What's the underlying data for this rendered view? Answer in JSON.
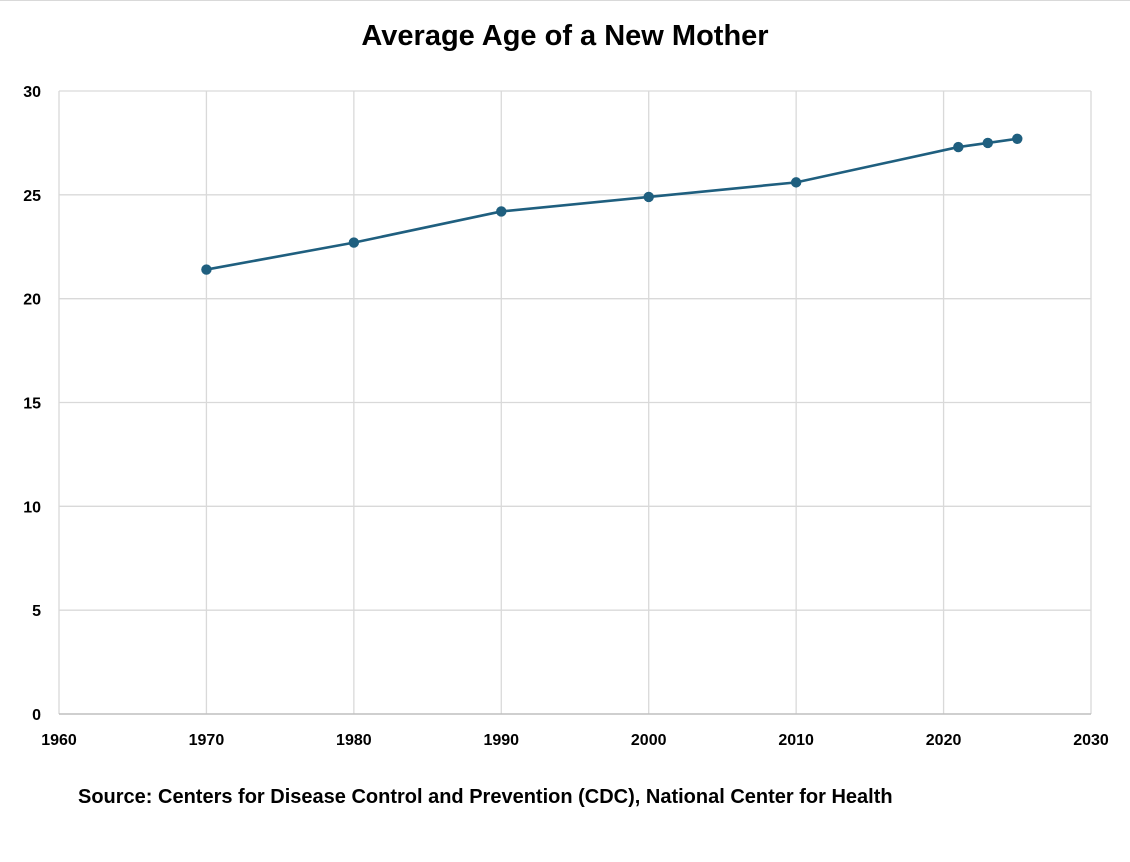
{
  "chart_data": {
    "type": "line",
    "title": "Average Age of a New Mother",
    "xlabel": "",
    "ylabel": "",
    "xlim": [
      1960,
      2030
    ],
    "ylim": [
      0,
      30
    ],
    "x_ticks": [
      1960,
      1970,
      1980,
      1990,
      2000,
      2010,
      2020,
      2030
    ],
    "y_ticks": [
      0,
      5,
      10,
      15,
      20,
      25,
      30
    ],
    "grid": true,
    "legend": "none",
    "series": [
      {
        "color": "#1f5f7f",
        "points": [
          {
            "x": 1970,
            "y": 21.4
          },
          {
            "x": 1980,
            "y": 22.7
          },
          {
            "x": 1990,
            "y": 24.2
          },
          {
            "x": 2000,
            "y": 24.9
          },
          {
            "x": 2010,
            "y": 25.6
          },
          {
            "x": 2021,
            "y": 27.3
          },
          {
            "x": 2023,
            "y": 27.5
          },
          {
            "x": 2025,
            "y": 27.7
          }
        ]
      }
    ]
  },
  "source": "Source: Centers for Disease Control and Prevention (CDC), National Center for Health",
  "colors": {
    "gridline": "#d9d9d9",
    "axis": "#bfbfbf",
    "line": "#1f5f7f"
  }
}
